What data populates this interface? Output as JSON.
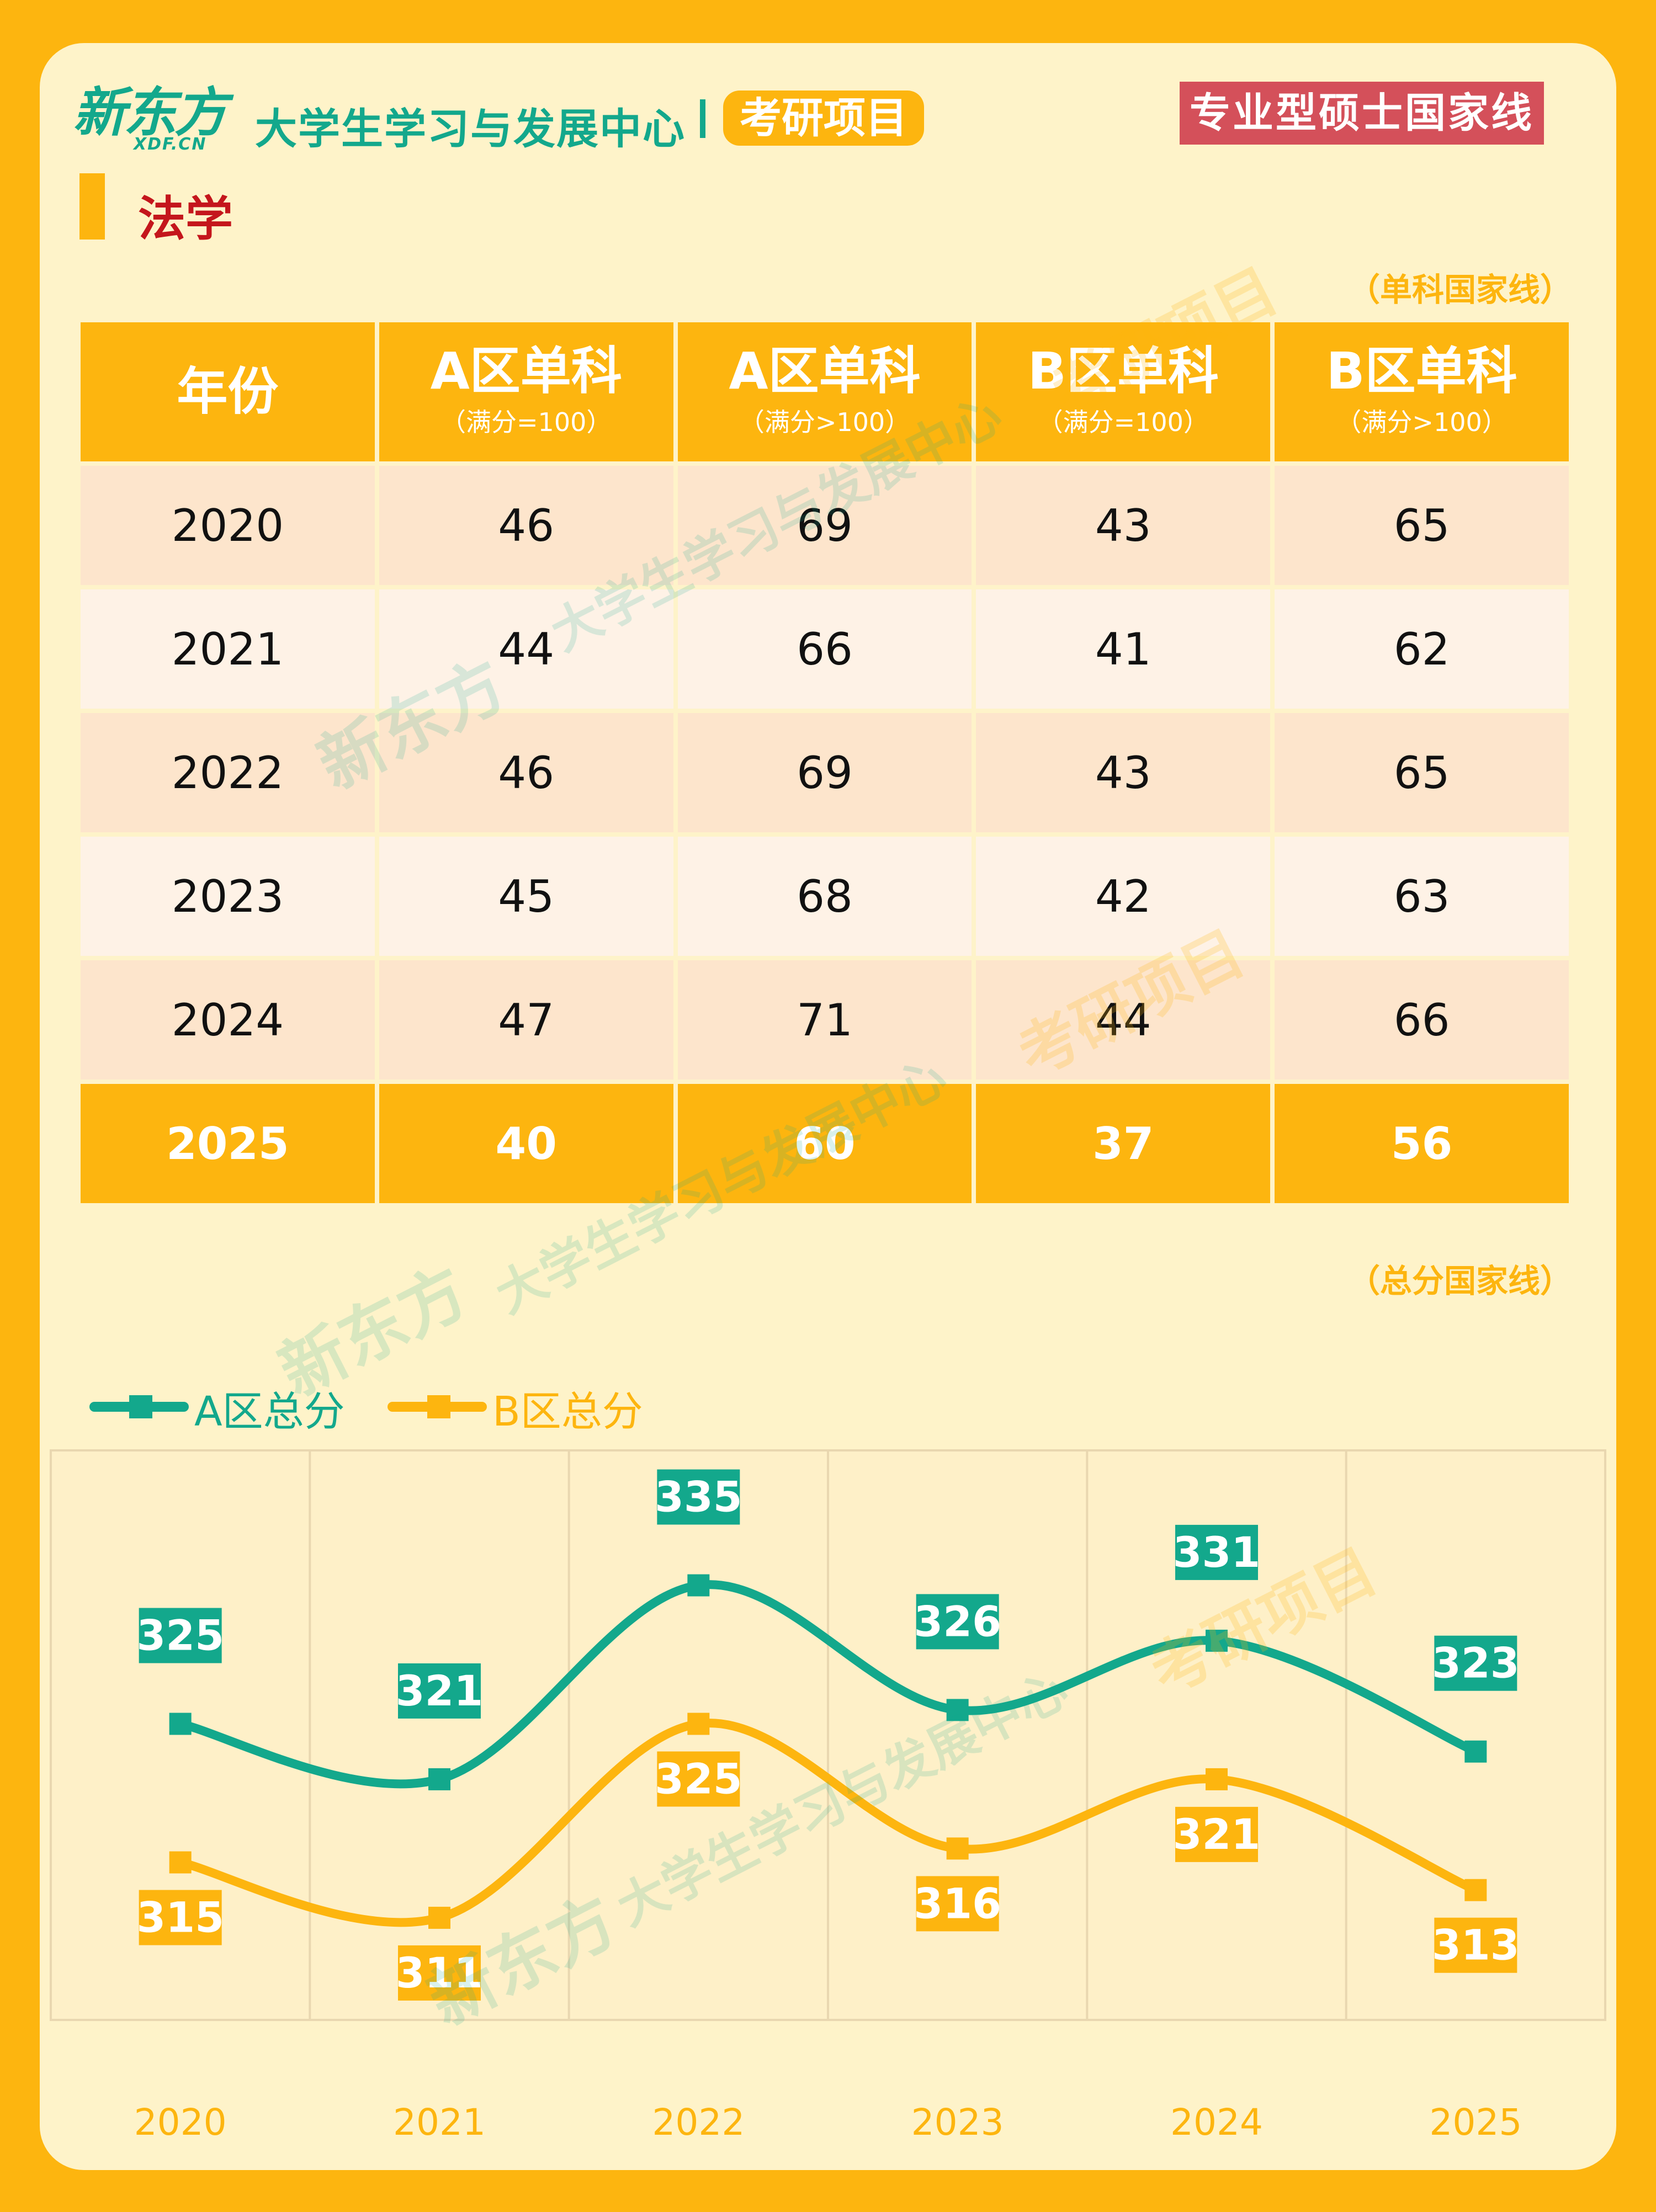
{
  "header": {
    "logo_text": "新东方",
    "logo_sub": "XDF.CN",
    "org_name": "大学生学习与发展中心",
    "project_label": "考研项目",
    "badge": "专业型硕士国家线",
    "subject": "法学"
  },
  "table": {
    "note": "（单科国家线）",
    "columns": [
      {
        "title": "年份",
        "sub": ""
      },
      {
        "title": "A区单科",
        "sub": "（满分=100）"
      },
      {
        "title": "A区单科",
        "sub": "（满分>100）"
      },
      {
        "title": "B区单科",
        "sub": "（满分=100）"
      },
      {
        "title": "B区单科",
        "sub": "（满分>100）"
      }
    ],
    "rows": [
      [
        "2020",
        "46",
        "69",
        "43",
        "65"
      ],
      [
        "2021",
        "44",
        "66",
        "41",
        "62"
      ],
      [
        "2022",
        "46",
        "69",
        "43",
        "65"
      ],
      [
        "2023",
        "45",
        "68",
        "42",
        "63"
      ],
      [
        "2024",
        "47",
        "71",
        "44",
        "66"
      ],
      [
        "2025",
        "40",
        "60",
        "37",
        "56"
      ]
    ]
  },
  "chart_data": {
    "type": "line",
    "title": "（总分国家线）",
    "x": [
      "2020",
      "2021",
      "2022",
      "2023",
      "2024",
      "2025"
    ],
    "series": [
      {
        "name": "A区总分",
        "color": "#13A88C",
        "values": [
          325,
          321,
          335,
          326,
          331,
          323
        ]
      },
      {
        "name": "B区总分",
        "color": "#FDB50F",
        "values": [
          315,
          311,
          325,
          316,
          321,
          313
        ]
      }
    ],
    "ylim": [
      290,
      350
    ],
    "grid": "vertical",
    "legend": "top-left"
  },
  "watermark": {
    "logo": "新东方",
    "logo_sub": "XDF.CN",
    "org": "大学生学习与发展中心",
    "project": "考研项目"
  },
  "colors": {
    "brand_green": "#13A88C",
    "brand_yellow": "#FDB50F",
    "badge_red": "#D4505A",
    "subject_red": "#C4161C"
  }
}
